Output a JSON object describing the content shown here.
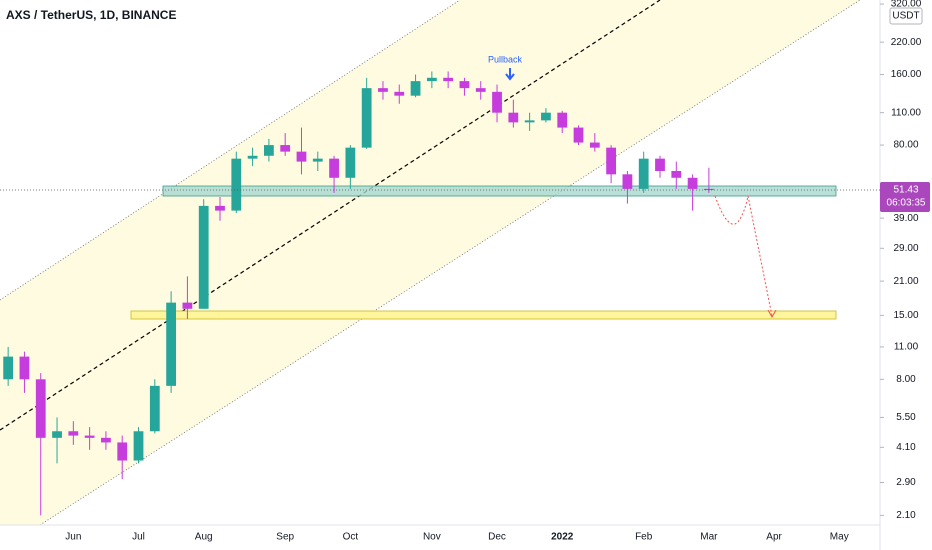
{
  "chart_data": {
    "type": "candlestick",
    "title": "AXS / TetherUS, 1D, BINANCE",
    "currency": "USDT",
    "annotation": "Pullback",
    "countdown": "06:03:35",
    "categories": [
      null,
      null,
      null,
      null,
      "Jun",
      null,
      null,
      null,
      "Jul",
      null,
      null,
      null,
      "Aug",
      null,
      null,
      null,
      null,
      "Sep",
      null,
      null,
      null,
      "Oct",
      null,
      null,
      null,
      null,
      "Nov",
      null,
      null,
      null,
      "Dec",
      null,
      null,
      null,
      "2022",
      null,
      null,
      null,
      null,
      "Feb",
      null,
      null,
      null,
      "Mar",
      null,
      null,
      null,
      "Apr",
      null,
      null,
      null,
      "May",
      null,
      null
    ],
    "open": [
      8,
      10,
      8,
      4.5,
      4.8,
      4.6,
      4.5,
      4.3,
      3.6,
      4.8,
      7.5,
      17,
      16,
      44,
      42,
      70,
      72,
      80,
      75,
      68,
      70,
      58,
      78,
      140,
      135,
      130,
      150,
      155,
      150,
      140,
      135,
      110,
      100,
      102,
      110,
      95,
      82,
      78,
      60,
      52,
      70,
      62,
      58,
      52,
      null,
      null,
      null,
      null,
      null,
      null,
      null,
      null,
      null,
      null
    ],
    "high": [
      11,
      10.5,
      8.5,
      5.5,
      5.3,
      5,
      4.8,
      4.6,
      5,
      8,
      19,
      22,
      47,
      48,
      75,
      78,
      85,
      90,
      95,
      75,
      72,
      80,
      155,
      150,
      145,
      160,
      165,
      165,
      155,
      150,
      145,
      125,
      110,
      115,
      112,
      97,
      90,
      80,
      62,
      75,
      72,
      68,
      60,
      64,
      null,
      null,
      null,
      null,
      null,
      null,
      null,
      null,
      null,
      null
    ],
    "low": [
      7.5,
      7,
      2.1,
      3.5,
      4.2,
      4,
      4,
      3,
      3.5,
      4.7,
      7,
      14.5,
      16,
      38,
      41,
      65,
      68,
      72,
      60,
      62,
      50,
      52,
      77,
      125,
      120,
      128,
      140,
      140,
      130,
      125,
      100,
      95,
      92,
      100,
      90,
      80,
      75,
      55,
      45,
      50,
      58,
      52,
      42,
      50,
      null,
      null,
      null,
      null,
      null,
      null,
      null,
      null,
      null,
      null
    ],
    "close": [
      10,
      8,
      4.5,
      4.8,
      4.6,
      4.5,
      4.3,
      3.6,
      4.8,
      7.5,
      17,
      16,
      44,
      42,
      70,
      72,
      80,
      75,
      68,
      70,
      58,
      78,
      140,
      135,
      130,
      150,
      155,
      150,
      140,
      135,
      110,
      100,
      102,
      110,
      95,
      82,
      78,
      60,
      52,
      70,
      62,
      58,
      52,
      51.43,
      null,
      null,
      null,
      null,
      null,
      null,
      null,
      null,
      null,
      null
    ],
    "up_color": "#26a69a",
    "down_color": "#c53ddc",
    "last_color": "#ab47bc",
    "log_scale": true,
    "ylim": [
      1.91,
      333
    ],
    "yticks": [
      {
        "value": 320,
        "label": "320.00"
      },
      {
        "value": 220,
        "label": "220.00"
      },
      {
        "value": 160,
        "label": "160.00"
      },
      {
        "value": 110,
        "label": "110.00"
      },
      {
        "value": 80,
        "label": "80.00"
      },
      {
        "value": 39,
        "label": "39.00"
      },
      {
        "value": 29,
        "label": "29.00"
      },
      {
        "value": 21,
        "label": "21.00"
      },
      {
        "value": 15,
        "label": "15.00"
      },
      {
        "value": 11,
        "label": "11.00"
      },
      {
        "value": 8,
        "label": "8.00"
      },
      {
        "value": 5.5,
        "label": "5.50"
      },
      {
        "value": 4.1,
        "label": "4.10"
      },
      {
        "value": 2.9,
        "label": "2.90"
      },
      {
        "value": 2.1,
        "label": "2.10"
      }
    ]
  }
}
